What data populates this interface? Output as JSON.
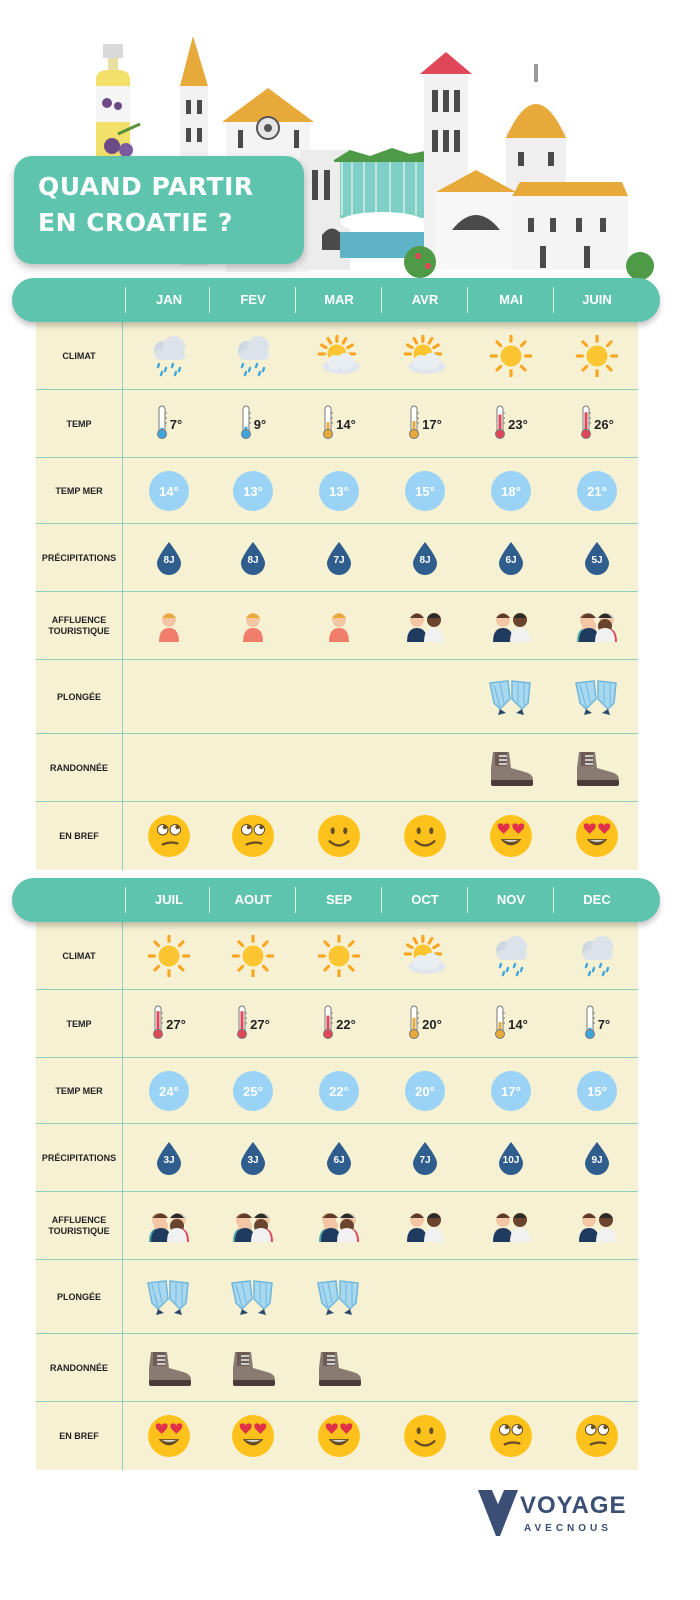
{
  "title": {
    "line1": "QUAND PARTIR",
    "line2": "EN CROATIE ?"
  },
  "row_labels": {
    "climat": "CLIMAT",
    "temp": "TEMP",
    "temp_mer": "TEMP MER",
    "precipitations": "PRÉCIPITATIONS",
    "affluence": "AFFLUENCE TOURISTIQUE",
    "plongee": "PLONGÉE",
    "randonnee": "RANDONNÉE",
    "en_bref": "EN BREF"
  },
  "sections": [
    {
      "months": [
        "JAN",
        "FEV",
        "MAR",
        "AVR",
        "MAI",
        "JUIN"
      ],
      "climat": [
        "rain-icon",
        "rain-icon",
        "sun-cloud-icon",
        "sun-cloud-icon",
        "sun-icon",
        "sun-icon"
      ],
      "temp": [
        "7°",
        "9°",
        "14°",
        "17°",
        "23°",
        "26°"
      ],
      "temp_level": [
        0.15,
        0.2,
        0.4,
        0.45,
        0.75,
        0.85
      ],
      "temp_mer": [
        "14°",
        "13°",
        "13°",
        "15°",
        "18°",
        "21°"
      ],
      "precipitations": [
        "8J",
        "8J",
        "7J",
        "8J",
        "6J",
        "5J"
      ],
      "affluence": [
        1,
        1,
        1,
        2,
        2,
        3
      ],
      "plongee": [
        false,
        false,
        false,
        false,
        true,
        true
      ],
      "randonnee": [
        false,
        false,
        false,
        false,
        true,
        true
      ],
      "en_bref": [
        "eye-roll-face-icon",
        "eye-roll-face-icon",
        "smile-face-icon",
        "smile-face-icon",
        "heart-eyes-face-icon",
        "heart-eyes-face-icon"
      ]
    },
    {
      "months": [
        "JUIL",
        "AOUT",
        "SEP",
        "OCT",
        "NOV",
        "DEC"
      ],
      "climat": [
        "sun-icon",
        "sun-icon",
        "sun-icon",
        "sun-cloud-icon",
        "rain-icon",
        "rain-icon"
      ],
      "temp": [
        "27°",
        "27°",
        "22°",
        "20°",
        "14°",
        "7°"
      ],
      "temp_level": [
        0.9,
        0.9,
        0.7,
        0.6,
        0.4,
        0.15
      ],
      "temp_mer": [
        "24°",
        "25°",
        "22°",
        "20°",
        "17°",
        "15°"
      ],
      "precipitations": [
        "3J",
        "3J",
        "6J",
        "7J",
        "10J",
        "9J"
      ],
      "affluence": [
        3,
        3,
        3,
        2,
        2,
        2
      ],
      "plongee": [
        true,
        true,
        true,
        false,
        false,
        false
      ],
      "randonnee": [
        true,
        true,
        true,
        false,
        false,
        false
      ],
      "en_bref": [
        "heart-eyes-face-icon",
        "heart-eyes-face-icon",
        "heart-eyes-face-icon",
        "smile-face-icon",
        "eye-roll-face-icon",
        "eye-roll-face-icon"
      ]
    }
  ],
  "logo": {
    "main": "VOYAGE",
    "sub": "AVECNOUS"
  },
  "colors": {
    "teal": "#5ec4ad",
    "cream": "#f6f1d2",
    "sea_badge": "#9ad3f5",
    "drop": "#2f5d8e"
  }
}
